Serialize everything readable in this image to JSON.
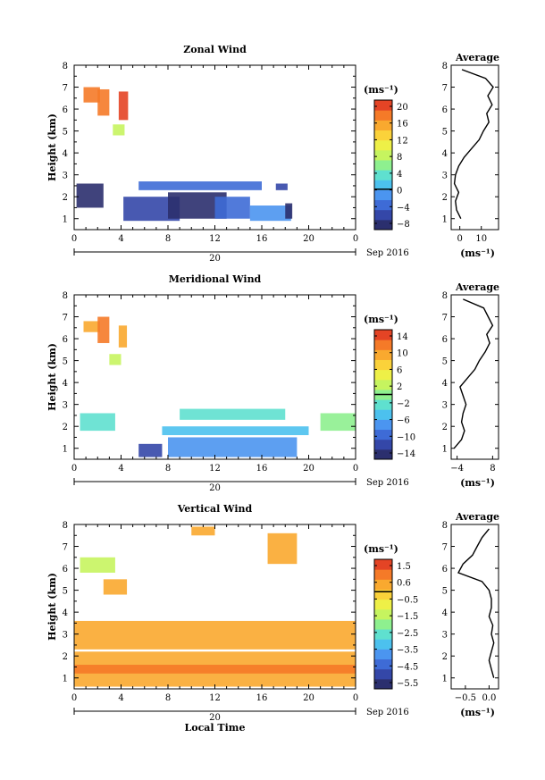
{
  "colorscale": [
    "#2b2f6e",
    "#3447a8",
    "#3e6bd6",
    "#4b95f0",
    "#4cc1ee",
    "#5fe0cf",
    "#8ef08f",
    "#c6f45f",
    "#eef047",
    "#fbd23a",
    "#f9a92f",
    "#f57a28",
    "#e44425"
  ],
  "chart_data": [
    {
      "type": "heatmap",
      "title": "Zonal Wind",
      "xlabel": "",
      "ylabel": "Height (km)",
      "date_label": "20",
      "period_label": "Sep 2016",
      "xlim": [
        0,
        24
      ],
      "ylim": [
        0.5,
        8
      ],
      "xticks": [
        "0",
        "4",
        "8",
        "12",
        "16",
        "20",
        "0"
      ],
      "yticks": [
        "1",
        "2",
        "3",
        "4",
        "5",
        "6",
        "7",
        "8"
      ],
      "colorbar": {
        "unit": "(ms⁻¹)",
        "range": [
          -10,
          22
        ],
        "ticks": [
          "20",
          "16",
          "12",
          "8",
          "4",
          "0",
          "−4",
          "−8"
        ]
      },
      "cells": [
        {
          "x0": 0.8,
          "x1": 2.2,
          "y0": 6.3,
          "y1": 7.0,
          "v": 18
        },
        {
          "x0": 2.0,
          "x1": 3.0,
          "y0": 5.7,
          "y1": 6.9,
          "v": 19
        },
        {
          "x0": 3.8,
          "x1": 4.6,
          "y0": 5.5,
          "y1": 6.8,
          "v": 20
        },
        {
          "x0": 3.3,
          "x1": 4.3,
          "y0": 4.8,
          "y1": 5.3,
          "v": 9
        },
        {
          "x0": 0.2,
          "x1": 2.5,
          "y0": 1.5,
          "y1": 2.6,
          "v": -9
        },
        {
          "x0": 4.2,
          "x1": 9.0,
          "y0": 0.9,
          "y1": 2.0,
          "v": -6
        },
        {
          "x0": 8.0,
          "x1": 13.0,
          "y0": 1.0,
          "y1": 2.2,
          "v": -8
        },
        {
          "x0": 12.0,
          "x1": 15.0,
          "y0": 1.0,
          "y1": 2.0,
          "v": -4
        },
        {
          "x0": 15.0,
          "x1": 18.5,
          "y0": 0.9,
          "y1": 1.6,
          "v": -1
        },
        {
          "x0": 5.5,
          "x1": 16.0,
          "y0": 2.3,
          "y1": 2.7,
          "v": -3
        },
        {
          "x0": 17.2,
          "x1": 18.2,
          "y0": 2.3,
          "y1": 2.6,
          "v": -7
        },
        {
          "x0": 18.0,
          "x1": 18.6,
          "y0": 1.0,
          "y1": 1.7,
          "v": -9
        }
      ],
      "profile": {
        "title": "Average",
        "xlim": [
          -4,
          18
        ],
        "xticks": [
          "0",
          "10"
        ],
        "xlabel": "(ms⁻¹)",
        "h": [
          1.0,
          1.4,
          1.8,
          2.2,
          2.6,
          3.0,
          3.4,
          3.8,
          4.2,
          4.6,
          5.0,
          5.4,
          5.8,
          6.2,
          6.6,
          7.0,
          7.4,
          7.8
        ],
        "u": [
          0.5,
          -1.5,
          -2.0,
          -0.5,
          -2.5,
          -2.0,
          -0.5,
          2.0,
          5.5,
          9.0,
          11.0,
          13.5,
          12.5,
          15.0,
          13.0,
          15.5,
          12.0,
          1.0
        ]
      }
    },
    {
      "type": "heatmap",
      "title": "Meridional Wind",
      "xlabel": "",
      "ylabel": "Height (km)",
      "date_label": "20",
      "period_label": "Sep 2016",
      "xlim": [
        0,
        24
      ],
      "ylim": [
        0.5,
        8
      ],
      "xticks": [
        "0",
        "4",
        "8",
        "12",
        "16",
        "20",
        "0"
      ],
      "yticks": [
        "1",
        "2",
        "3",
        "4",
        "5",
        "6",
        "7",
        "8"
      ],
      "colorbar": {
        "unit": "(ms⁻¹)",
        "range": [
          -16,
          16
        ],
        "ticks": [
          "14",
          "10",
          "6",
          "2",
          "−2",
          "−6",
          "−10",
          "−14"
        ]
      },
      "cells": [
        {
          "x0": 0.8,
          "x1": 2.2,
          "y0": 6.3,
          "y1": 6.8,
          "v": 10
        },
        {
          "x0": 2.0,
          "x1": 3.0,
          "y0": 5.8,
          "y1": 7.0,
          "v": 13
        },
        {
          "x0": 3.8,
          "x1": 4.5,
          "y0": 5.6,
          "y1": 6.6,
          "v": 9
        },
        {
          "x0": 3.0,
          "x1": 4.0,
          "y0": 4.8,
          "y1": 5.3,
          "v": 3
        },
        {
          "x0": 0.5,
          "x1": 3.5,
          "y0": 1.8,
          "y1": 2.6,
          "v": -3
        },
        {
          "x0": 5.5,
          "x1": 7.5,
          "y0": 0.6,
          "y1": 1.2,
          "v": -12
        },
        {
          "x0": 8.0,
          "x1": 19.0,
          "y0": 0.6,
          "y1": 1.5,
          "v": -7
        },
        {
          "x0": 9.0,
          "x1": 18.0,
          "y0": 2.3,
          "y1": 2.8,
          "v": -2
        },
        {
          "x0": 7.5,
          "x1": 20.0,
          "y0": 1.6,
          "y1": 2.0,
          "v": -4
        },
        {
          "x0": 21.0,
          "x1": 24.0,
          "y0": 1.8,
          "y1": 2.6,
          "v": 0
        }
      ],
      "profile": {
        "title": "Average",
        "xlim": [
          -6,
          10
        ],
        "xticks": [
          "−4",
          "8"
        ],
        "xlabel": "(ms⁻¹)",
        "h": [
          1.0,
          1.4,
          1.8,
          2.2,
          2.6,
          3.0,
          3.4,
          3.8,
          4.2,
          4.6,
          5.0,
          5.4,
          5.8,
          6.2,
          6.6,
          7.0,
          7.4,
          7.8
        ],
        "u": [
          -5.0,
          -2.5,
          -1.5,
          -2.5,
          -2.0,
          -1.0,
          -2.0,
          -3.0,
          -0.5,
          2.0,
          3.5,
          5.5,
          7.0,
          6.0,
          8.0,
          6.5,
          5.0,
          -2.0
        ]
      }
    },
    {
      "type": "heatmap",
      "title": "Vertical Wind",
      "xlabel": "Local Time",
      "ylabel": "Height (km)",
      "date_label": "20",
      "period_label": "Sep 2016",
      "xlim": [
        0,
        24
      ],
      "ylim": [
        0.5,
        8
      ],
      "xticks": [
        "0",
        "4",
        "8",
        "12",
        "16",
        "20",
        "0"
      ],
      "yticks": [
        "1",
        "2",
        "3",
        "4",
        "5",
        "6",
        "7",
        "8"
      ],
      "colorbar": {
        "unit": "(ms⁻¹)",
        "range": [
          -6,
          2
        ],
        "ticks": [
          "1.5",
          "0.6",
          "−0.5",
          "−1.5",
          "−2.5",
          "−3.5",
          "−4.5",
          "−5.5"
        ]
      },
      "cells": [
        {
          "x0": 0.5,
          "x1": 3.5,
          "y0": 5.8,
          "y1": 6.5,
          "v": -1.3
        },
        {
          "x0": 2.5,
          "x1": 4.5,
          "y0": 4.8,
          "y1": 5.5,
          "v": 0.2
        },
        {
          "x0": 16.5,
          "x1": 19.0,
          "y0": 6.2,
          "y1": 7.6,
          "v": 0.6
        },
        {
          "x0": 10.0,
          "x1": 12.0,
          "y0": 7.5,
          "y1": 7.9,
          "v": 0.5
        },
        {
          "x0": 0.0,
          "x1": 24.0,
          "y0": 2.3,
          "y1": 3.6,
          "v": 0.6
        },
        {
          "x0": 0.0,
          "x1": 24.0,
          "y0": 0.6,
          "y1": 2.2,
          "v": 0.7
        },
        {
          "x0": 0.0,
          "x1": 24.0,
          "y0": 1.2,
          "y1": 1.6,
          "v": 1.0
        }
      ],
      "profile": {
        "title": "Average",
        "xlim": [
          -0.8,
          0.2
        ],
        "xticks": [
          "−0.5",
          "0.0"
        ],
        "xlabel": "(ms⁻¹)",
        "h": [
          1.0,
          1.4,
          1.8,
          2.2,
          2.6,
          3.0,
          3.4,
          3.8,
          4.2,
          4.6,
          5.0,
          5.4,
          5.8,
          6.2,
          6.6,
          7.0,
          7.4,
          7.8
        ],
        "u": [
          0.1,
          0.05,
          0.0,
          0.05,
          0.1,
          0.05,
          0.08,
          0.0,
          0.05,
          0.05,
          0.0,
          -0.15,
          -0.65,
          -0.55,
          -0.35,
          -0.25,
          -0.15,
          0.0
        ]
      }
    }
  ]
}
